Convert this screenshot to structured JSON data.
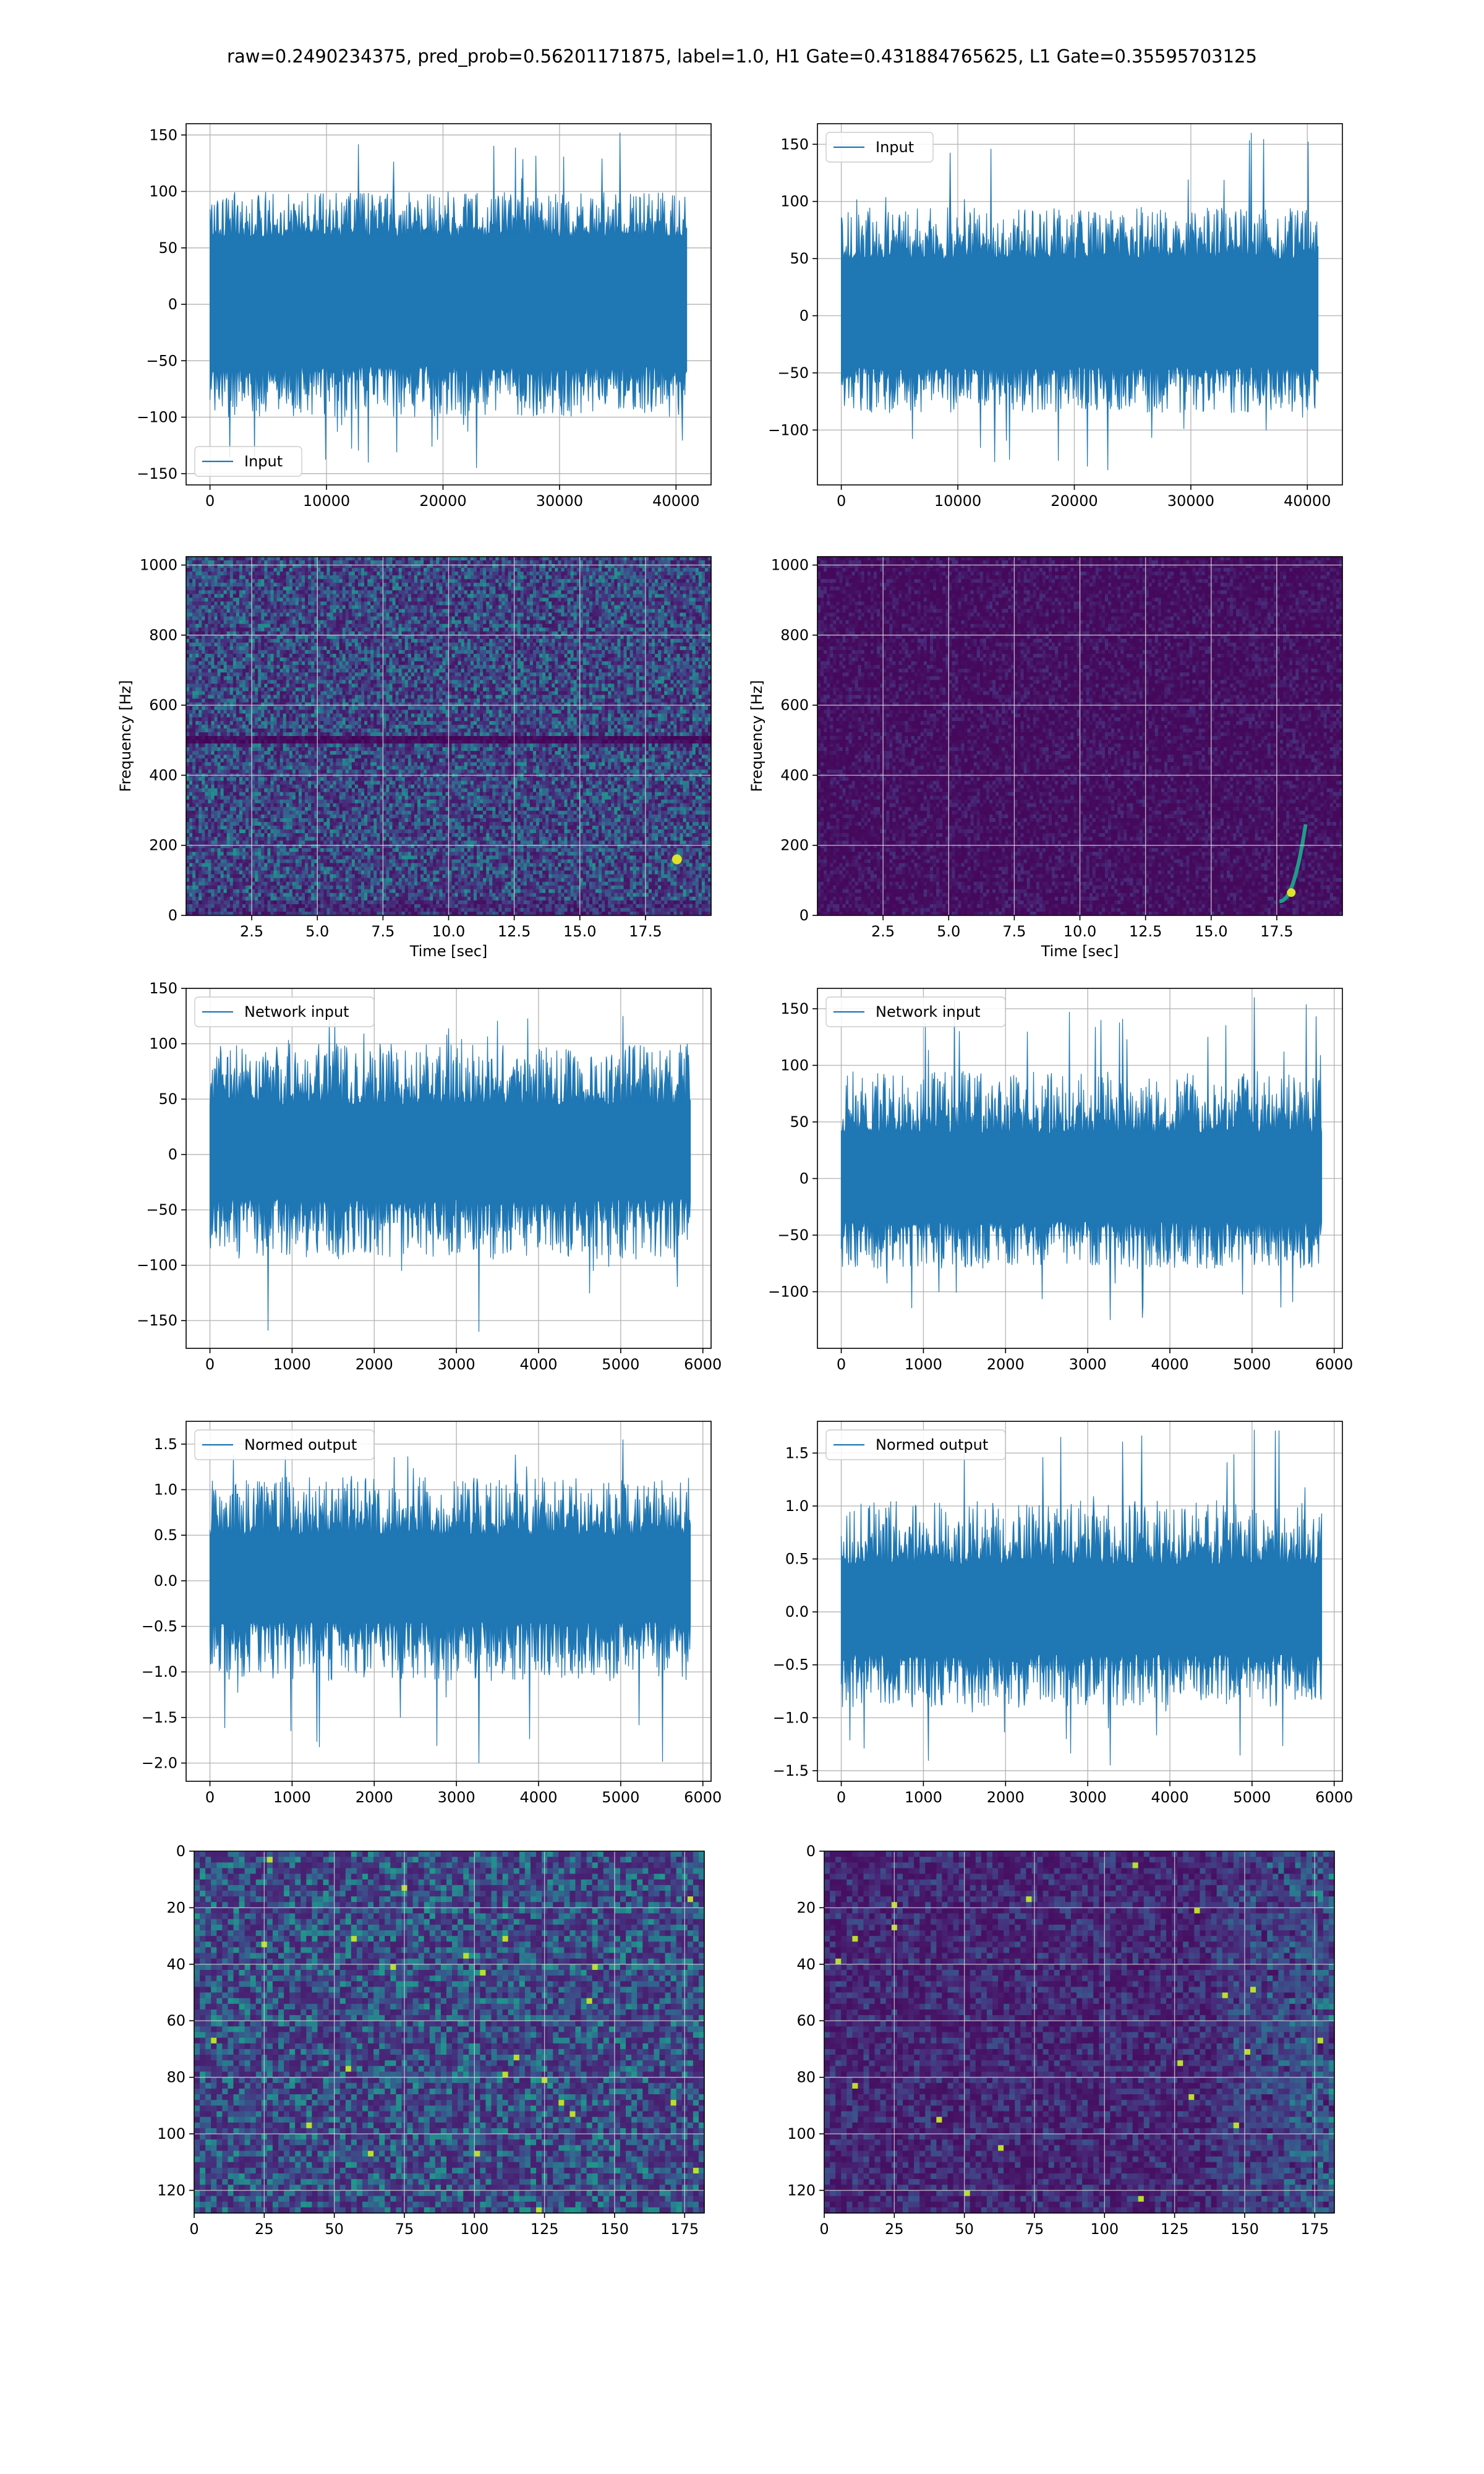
{
  "figure_title": "raw=0.2490234375, pred_prob=0.56201171875, label=1.0, H1 Gate=0.431884765625, L1 Gate=0.35595703125",
  "colors": {
    "line": "#1f77b4",
    "grid": "#b0b0b0",
    "viridis_low": "#440154",
    "viridis_high": "#fde725"
  },
  "chart_data": [
    {
      "id": "input-h1",
      "type": "line",
      "legend": "Input",
      "legend_position": "lower-left",
      "xlim": [
        -2048,
        43008
      ],
      "ylim": [
        -160,
        160
      ],
      "x_ticks": [
        0,
        10000,
        20000,
        30000,
        40000
      ],
      "x_tick_labels": [
        "0",
        "10000",
        "20000",
        "30000",
        "40000"
      ],
      "y_ticks": [
        -150,
        -100,
        -50,
        0,
        50,
        100,
        150
      ],
      "y_tick_labels": [
        "−150",
        "−100",
        "−50",
        "0",
        "50",
        "100",
        "150"
      ],
      "xlabel": "",
      "ylabel": "",
      "grid": true,
      "series": [
        {
          "x_start": 0,
          "x_end": 40960,
          "band": [
            -55,
            60
          ],
          "envelope": [
            -100,
            100
          ],
          "extremes": [
            -145,
            152
          ]
        }
      ]
    },
    {
      "id": "input-l1",
      "type": "line",
      "legend": "Input",
      "legend_position": "upper-left",
      "xlim": [
        -2048,
        43008
      ],
      "ylim": [
        -148,
        168
      ],
      "x_ticks": [
        0,
        10000,
        20000,
        30000,
        40000
      ],
      "x_tick_labels": [
        "0",
        "10000",
        "20000",
        "30000",
        "40000"
      ],
      "y_ticks": [
        -100,
        -50,
        0,
        50,
        100,
        150
      ],
      "y_tick_labels": [
        "−100",
        "−50",
        "0",
        "50",
        "100",
        "150"
      ],
      "xlabel": "",
      "ylabel": "",
      "grid": true,
      "series": [
        {
          "x_start": 0,
          "x_end": 40960,
          "band": [
            -45,
            50
          ],
          "envelope": [
            -85,
            95
          ],
          "extremes": [
            -135,
            160
          ]
        }
      ]
    },
    {
      "id": "spectrogram-h1",
      "type": "heatmap",
      "xlim": [
        0,
        20
      ],
      "ylim": [
        0,
        1024
      ],
      "x_ticks": [
        2.5,
        5,
        7.5,
        10,
        12.5,
        15,
        17.5
      ],
      "x_tick_labels": [
        "2.5",
        "5.0",
        "7.5",
        "10.0",
        "12.5",
        "15.0",
        "17.5"
      ],
      "y_ticks": [
        0,
        200,
        400,
        600,
        800,
        1000
      ],
      "y_tick_labels": [
        "0",
        "200",
        "400",
        "600",
        "800",
        "1000"
      ],
      "xlabel": "Time [sec]",
      "ylabel": "Frequency [Hz]",
      "grid": true,
      "colormap": "viridis",
      "features": {
        "dark_band_hz": 500,
        "bright_spot": {
          "t": 18.7,
          "f": 160
        }
      }
    },
    {
      "id": "spectrogram-l1",
      "type": "heatmap",
      "xlim": [
        0,
        20
      ],
      "ylim": [
        0,
        1024
      ],
      "x_ticks": [
        2.5,
        5,
        7.5,
        10,
        12.5,
        15,
        17.5
      ],
      "x_tick_labels": [
        "2.5",
        "5.0",
        "7.5",
        "10.0",
        "12.5",
        "15.0",
        "17.5"
      ],
      "y_ticks": [
        0,
        200,
        400,
        600,
        800,
        1000
      ],
      "y_tick_labels": [
        "0",
        "200",
        "400",
        "600",
        "800",
        "1000"
      ],
      "xlabel": "Time [sec]",
      "ylabel": "Frequency [Hz]",
      "grid": true,
      "colormap": "viridis",
      "features": {
        "chirp": {
          "t_start": 17.6,
          "t_end": 18.6,
          "f_start": 40,
          "f_end": 260
        }
      }
    },
    {
      "id": "network-input-h1",
      "type": "line",
      "legend": "Network input",
      "legend_position": "upper-left",
      "xlim": [
        -290,
        6100
      ],
      "ylim": [
        -175,
        150
      ],
      "x_ticks": [
        0,
        1000,
        2000,
        3000,
        4000,
        5000,
        6000
      ],
      "x_tick_labels": [
        "0",
        "1000",
        "2000",
        "3000",
        "4000",
        "5000",
        "6000"
      ],
      "y_ticks": [
        -150,
        -100,
        -50,
        0,
        50,
        100,
        150
      ],
      "y_tick_labels": [
        "−150",
        "−100",
        "−50",
        "0",
        "50",
        "100",
        "150"
      ],
      "xlabel": "",
      "ylabel": "",
      "grid": true,
      "series": [
        {
          "x_start": 0,
          "x_end": 5850,
          "band": [
            -40,
            45
          ],
          "envelope": [
            -95,
            100
          ],
          "extremes": [
            -160,
            125
          ]
        }
      ]
    },
    {
      "id": "network-input-l1",
      "type": "line",
      "legend": "Network input",
      "legend_position": "upper-left",
      "xlim": [
        -290,
        6100
      ],
      "ylim": [
        -150,
        168
      ],
      "x_ticks": [
        0,
        1000,
        2000,
        3000,
        4000,
        5000,
        6000
      ],
      "x_tick_labels": [
        "0",
        "1000",
        "2000",
        "3000",
        "4000",
        "5000",
        "6000"
      ],
      "y_ticks": [
        -100,
        -50,
        0,
        50,
        100,
        150
      ],
      "y_tick_labels": [
        "−100",
        "−50",
        "0",
        "50",
        "100",
        "150"
      ],
      "xlabel": "",
      "ylabel": "",
      "grid": true,
      "series": [
        {
          "x_start": 0,
          "x_end": 5850,
          "band": [
            -38,
            40
          ],
          "envelope": [
            -80,
            95
          ],
          "extremes": [
            -125,
            160
          ]
        }
      ]
    },
    {
      "id": "normed-output-h1",
      "type": "line",
      "legend": "Normed output",
      "legend_position": "upper-left",
      "xlim": [
        -290,
        6100
      ],
      "ylim": [
        -2.2,
        1.75
      ],
      "x_ticks": [
        0,
        1000,
        2000,
        3000,
        4000,
        5000,
        6000
      ],
      "x_tick_labels": [
        "0",
        "1000",
        "2000",
        "3000",
        "4000",
        "5000",
        "6000"
      ],
      "y_ticks": [
        -2.0,
        -1.5,
        -1.0,
        -0.5,
        0.0,
        0.5,
        1.0,
        1.5
      ],
      "y_tick_labels": [
        "−2.0",
        "−1.5",
        "−1.0",
        "−0.5",
        "0.0",
        "0.5",
        "1.0",
        "1.5"
      ],
      "xlabel": "",
      "ylabel": "",
      "grid": true,
      "series": [
        {
          "x_start": 0,
          "x_end": 5850,
          "band": [
            -0.45,
            0.5
          ],
          "envelope": [
            -1.1,
            1.15
          ],
          "extremes": [
            -2.0,
            1.55
          ]
        }
      ]
    },
    {
      "id": "normed-output-l1",
      "type": "line",
      "legend": "Normed output",
      "legend_position": "upper-left",
      "xlim": [
        -290,
        6100
      ],
      "ylim": [
        -1.6,
        1.8
      ],
      "x_ticks": [
        0,
        1000,
        2000,
        3000,
        4000,
        5000,
        6000
      ],
      "x_tick_labels": [
        "0",
        "1000",
        "2000",
        "3000",
        "4000",
        "5000",
        "6000"
      ],
      "y_ticks": [
        -1.5,
        -1.0,
        -0.5,
        0.0,
        0.5,
        1.0,
        1.5
      ],
      "y_tick_labels": [
        "−1.5",
        "−1.0",
        "−0.5",
        "0.0",
        "0.5",
        "1.0",
        "1.5"
      ],
      "xlabel": "",
      "ylabel": "",
      "grid": true,
      "series": [
        {
          "x_start": 0,
          "x_end": 5850,
          "band": [
            -0.4,
            0.45
          ],
          "envelope": [
            -0.9,
            1.05
          ],
          "extremes": [
            -1.45,
            1.72
          ]
        }
      ]
    },
    {
      "id": "features-h1",
      "type": "heatmap",
      "xlim": [
        0,
        182
      ],
      "ylim": [
        128,
        0
      ],
      "x_ticks": [
        0,
        25,
        50,
        75,
        100,
        125,
        150,
        175
      ],
      "x_tick_labels": [
        "0",
        "25",
        "50",
        "75",
        "100",
        "125",
        "150",
        "175"
      ],
      "y_ticks": [
        0,
        20,
        40,
        60,
        80,
        100,
        120
      ],
      "y_tick_labels": [
        "0",
        "20",
        "40",
        "60",
        "80",
        "100",
        "120"
      ],
      "xlabel": "",
      "ylabel": "",
      "grid": true,
      "colormap": "viridis",
      "rows": 128,
      "cols": 182,
      "features": {
        "mean_level": 0.25,
        "bright_from_col": null
      }
    },
    {
      "id": "features-l1",
      "type": "heatmap",
      "xlim": [
        0,
        182
      ],
      "ylim": [
        128,
        0
      ],
      "x_ticks": [
        0,
        25,
        50,
        75,
        100,
        125,
        150,
        175
      ],
      "x_tick_labels": [
        "0",
        "25",
        "50",
        "75",
        "100",
        "125",
        "150",
        "175"
      ],
      "y_ticks": [
        0,
        20,
        40,
        60,
        80,
        100,
        120
      ],
      "y_tick_labels": [
        "0",
        "20",
        "40",
        "60",
        "80",
        "100",
        "120"
      ],
      "xlabel": "",
      "ylabel": "",
      "grid": true,
      "colormap": "viridis",
      "rows": 128,
      "cols": 182,
      "features": {
        "mean_level": 0.12,
        "bright_from_col": 140
      }
    }
  ]
}
